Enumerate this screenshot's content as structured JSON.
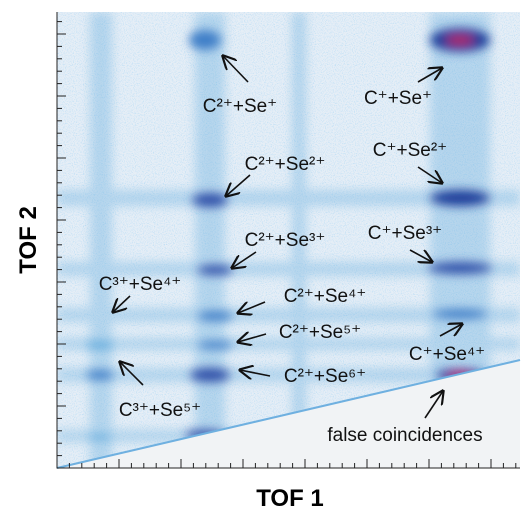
{
  "chart_data": {
    "type": "heatmap",
    "xlabel": "TOF 1",
    "ylabel": "TOF 2",
    "annotations": [
      "C²⁺+Se⁺",
      "C⁺+Se⁺",
      "C²⁺+Se²⁺",
      "C⁺+Se²⁺",
      "C²⁺+Se³⁺",
      "C⁺+Se³⁺",
      "C³⁺+Se⁴⁺",
      "C²⁺+Se⁴⁺",
      "C²⁺+Se⁵⁺",
      "C²⁺+Se⁶⁺",
      "C⁺+Se⁴⁺",
      "C³⁺+Se⁵⁺",
      "false coincidences"
    ]
  }
}
